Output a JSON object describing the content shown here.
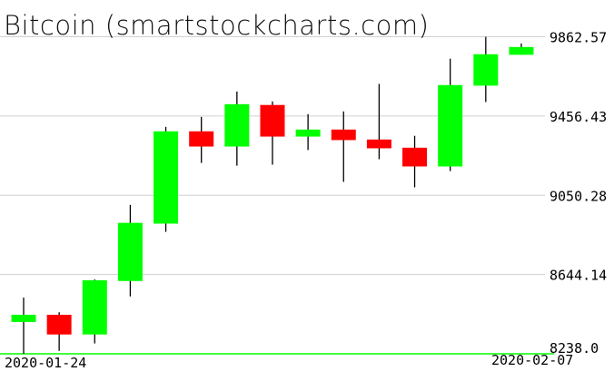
{
  "chart_data": {
    "type": "candlestick",
    "title": "Bitcoin (smartstockcharts.com)",
    "ylim": [
      8238.0,
      9862.57
    ],
    "yticks": [
      "8238.0",
      "8644.14",
      "9050.28",
      "9456.43",
      "9862.57"
    ],
    "xtick_labels": [
      "2020-01-24",
      "2020-02-07"
    ],
    "grid": true,
    "colors": {
      "up": "#00ff00",
      "down": "#ff0000",
      "wick": "#000000",
      "grid": "#d0d0d0",
      "baseline": "#00ff00",
      "top_label": "#d0d0d0"
    },
    "candles": [
      {
        "open": 8401,
        "high": 8526,
        "low": 8238,
        "close": 8438
      },
      {
        "open": 8438,
        "high": 8451,
        "low": 8253,
        "close": 8337
      },
      {
        "open": 8337,
        "high": 8619,
        "low": 8291,
        "close": 8615
      },
      {
        "open": 8611,
        "high": 9001,
        "low": 8532,
        "close": 8909
      },
      {
        "open": 8905,
        "high": 9401,
        "low": 8863,
        "close": 9378
      },
      {
        "open": 9378,
        "high": 9452,
        "low": 9216,
        "close": 9300
      },
      {
        "open": 9300,
        "high": 9582,
        "low": 9202,
        "close": 9517
      },
      {
        "open": 9513,
        "high": 9531,
        "low": 9207,
        "close": 9351
      },
      {
        "open": 9351,
        "high": 9466,
        "low": 9282,
        "close": 9387
      },
      {
        "open": 9387,
        "high": 9480,
        "low": 9119,
        "close": 9333
      },
      {
        "open": 9336,
        "high": 9621,
        "low": 9235,
        "close": 9291
      },
      {
        "open": 9294,
        "high": 9355,
        "low": 9091,
        "close": 9198
      },
      {
        "open": 9198,
        "high": 9750,
        "low": 9174,
        "close": 9615
      },
      {
        "open": 9612,
        "high": 9862,
        "low": 9528,
        "close": 9773
      },
      {
        "open": 9770,
        "high": 9828,
        "low": 9770,
        "close": 9810
      }
    ]
  }
}
